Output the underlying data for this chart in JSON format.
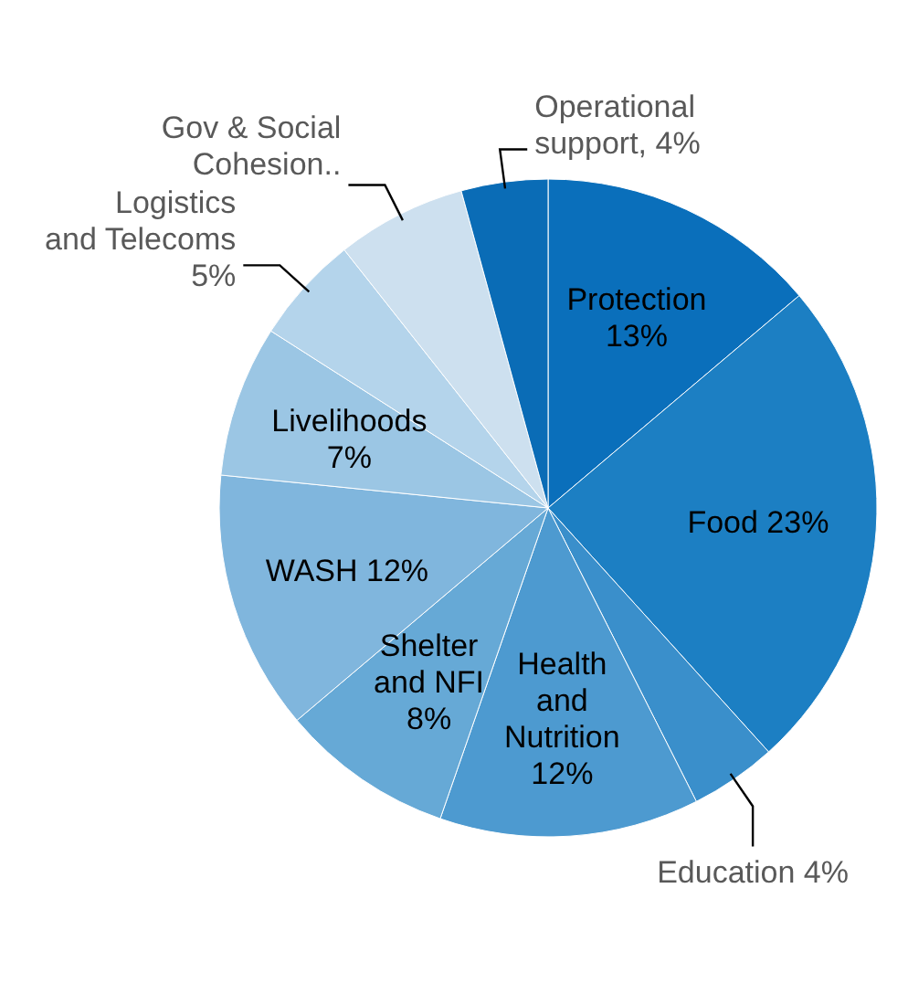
{
  "chart_data": {
    "type": "pie",
    "categories": [
      "Protection",
      "Food",
      "Education",
      "Health and Nutrition",
      "Shelter and NFI",
      "WASH",
      "Livelihoods",
      "Logistics and Telecoms",
      "Gov & Social Cohesion..",
      "Operational support"
    ],
    "values": [
      13,
      23,
      4,
      12,
      8,
      12,
      7,
      5,
      6,
      4
    ],
    "value_labels": [
      "13%",
      "23%",
      "4%",
      "12%",
      "8%",
      "12%",
      "7%",
      "5%",
      null,
      "4%"
    ],
    "colors": [
      "#0a6fbb",
      "#1c7fc3",
      "#3a8fcb",
      "#4d9ad0",
      "#66a9d6",
      "#80b6dd",
      "#9bc6e4",
      "#b4d4eb",
      "#cde0ef",
      "#0a6cb6"
    ],
    "legend": false
  }
}
